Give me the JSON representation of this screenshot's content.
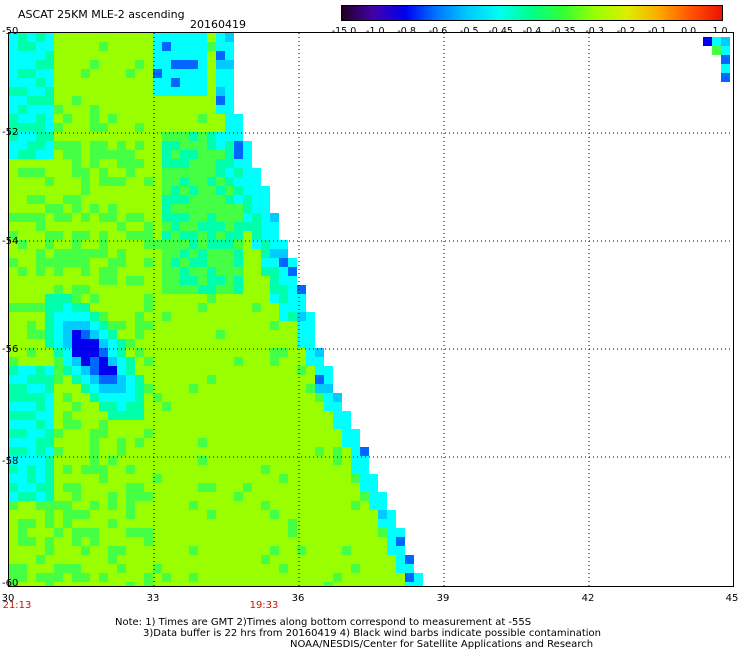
{
  "header": {
    "title": "ASCAT 25KM MLE-2 ascending",
    "date": "20160419"
  },
  "colorbar": {
    "labels": [
      "-15.0",
      "-1.0",
      "-0.8",
      "-0.6",
      "-0.5",
      "-0.45",
      "-0.4",
      "-0.35",
      "-0.3",
      "-0.2",
      "-0.1",
      "0.0",
      "1.0"
    ],
    "colors": [
      "#220022",
      "#4400aa",
      "#0000ee",
      "#0077ff",
      "#00ccff",
      "#00ffee",
      "#00ff88",
      "#33ff33",
      "#99ff00",
      "#ddee00",
      "#ffaa00",
      "#ff5500",
      "#ee1100"
    ]
  },
  "map": {
    "lat_labels": [
      "-50",
      "-52",
      "-54",
      "-56",
      "-58",
      "-60"
    ],
    "lon_labels": [
      "30",
      "33",
      "36",
      "39",
      "42",
      "45"
    ],
    "lat_range": [
      -60,
      -50
    ],
    "lon_range": [
      30,
      45
    ],
    "grid": "dotted",
    "field_colors": {
      "base": "#99ff00",
      "green": "#44ff44",
      "teal": "#00ffaa",
      "cyan": "#00ffff",
      "sky": "#00ccff",
      "blue": "#0066ff",
      "deep": "#0000ee",
      "dark": "#220044"
    }
  },
  "time_labels": [
    "21:13",
    "19:33"
  ],
  "footnote": {
    "line1": "Note: 1) Times are GMT 2)Times along bottom correspond to measurement at -55S",
    "line2": "3)Data buffer is 22 hrs from 20160419 4) Black wind barbs indicate possible contamination",
    "line3": "NOAA/NESDIS/Center for Satellite Applications and Research"
  }
}
